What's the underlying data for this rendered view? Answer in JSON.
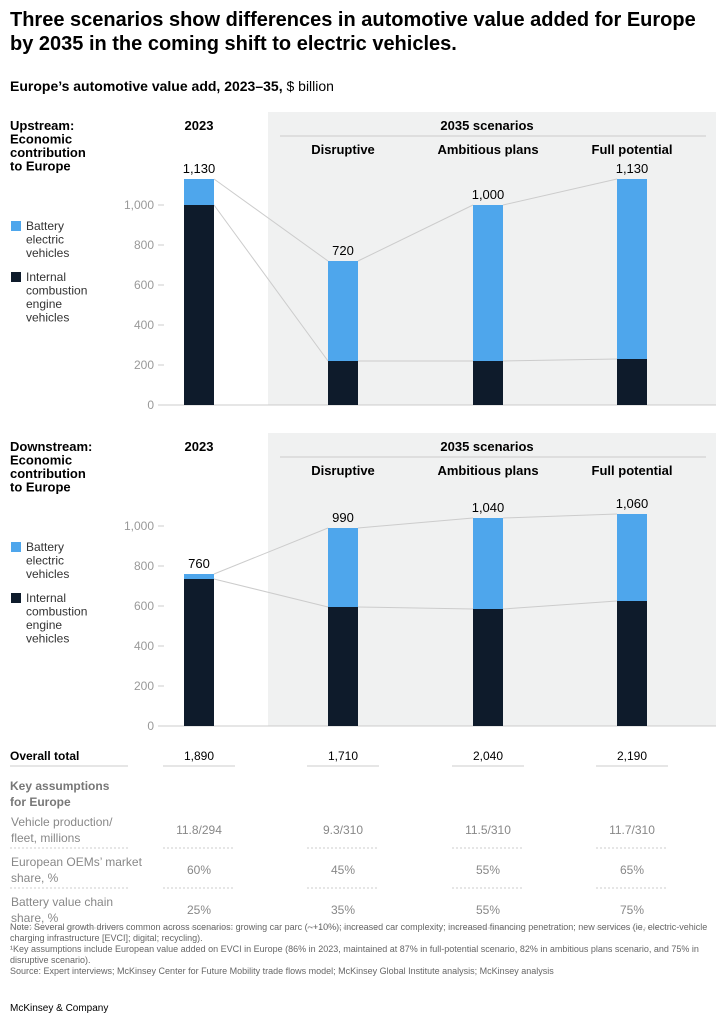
{
  "title": "Three scenarios show differences in automotive value added for Europe by 2035 in the coming shift to electric vehicles.",
  "subtitle_bold": "Europe’s automotive value add, 2023–35,",
  "subtitle_unit": "$ billion",
  "colors": {
    "bev": "#4ea6ec",
    "ice": "#0e1b2b",
    "panel": "#f0f1f1"
  },
  "legend": {
    "bev": "Battery electric vehicles",
    "ice": "Internal combustion engine vehicles"
  },
  "scenario_header": "2035 scenarios",
  "chart_data": [
    {
      "type": "bar",
      "stacked": true,
      "title": "Upstream: Economic contribution to Europe",
      "categories": [
        "2023",
        "Disruptive",
        "Ambitious plans",
        "Full potential"
      ],
      "series": [
        {
          "name": "Internal combustion engine vehicles",
          "values": [
            1000,
            220,
            220,
            230
          ]
        },
        {
          "name": "Battery electric vehicles",
          "values": [
            130,
            500,
            780,
            900
          ]
        }
      ],
      "totals": [
        "1,130",
        "720",
        "1,000",
        "1,130"
      ],
      "ylim": [
        0,
        1130
      ],
      "yticks": [
        "0",
        "200",
        "400",
        "600",
        "800",
        "1,000"
      ]
    },
    {
      "type": "bar",
      "stacked": true,
      "title": "Downstream: Economic contribution to Europe",
      "categories": [
        "2023",
        "Disruptive",
        "Ambitious plans",
        "Full potential"
      ],
      "series": [
        {
          "name": "Internal combustion engine vehicles",
          "values": [
            735,
            595,
            585,
            625
          ]
        },
        {
          "name": "Battery electric vehicles",
          "values": [
            25,
            395,
            455,
            435
          ]
        }
      ],
      "totals": [
        "760",
        "990",
        "1,040",
        "1,060"
      ],
      "ylim": [
        0,
        1060
      ],
      "yticks": [
        "0",
        "200",
        "400",
        "600",
        "800",
        "1,000"
      ]
    }
  ],
  "overall": {
    "label": "Overall total",
    "values": [
      "1,890",
      "1,710",
      "2,040",
      "2,190"
    ]
  },
  "assumptions": {
    "heading": "Key assumptions for Europe",
    "rows": [
      {
        "label": "Vehicle production/ fleet, millions",
        "values": [
          "11.8/294",
          "9.3/310",
          "11.5/310",
          "11.7/310"
        ]
      },
      {
        "label": "European OEMs’ market share, %",
        "values": [
          "60%",
          "45%",
          "55%",
          "65%"
        ]
      },
      {
        "label": "Battery value chain share, %",
        "values": [
          "25%",
          "35%",
          "55%",
          "75%"
        ]
      }
    ]
  },
  "notes": [
    "Note: Several growth drivers common across scenarios: growing car parc (~+10%); increased car complexity; increased financing penetration; new services (ie, electric-vehicle charging infrastructure [EVCI]; digital; recycling).",
    "¹Key assumptions include European value added on EVCI in Europe (86% in 2023, maintained at 87% in full-potential scenario, 82% in ambitious plans scenario, and 75% in disruptive scenario).",
    "Source: Expert interviews; McKinsey Center for Future Mobility trade flows model; McKinsey Global Institute analysis; McKinsey analysis"
  ],
  "brand": "McKinsey & Company"
}
